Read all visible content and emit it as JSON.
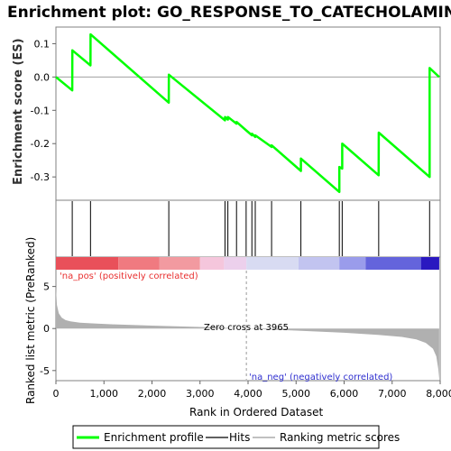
{
  "title": "Enrichment plot: GO_RESPONSE_TO_CATECHOLAMINE",
  "chart_data": [
    {
      "type": "line",
      "panel": "enrichment",
      "ylabel": "Enrichment score (ES)",
      "ylim": [
        -0.37,
        0.15
      ],
      "yticks": [
        "0.1",
        "0.0",
        "-0.1",
        "-0.2",
        "-0.3"
      ],
      "ytick_values": [
        0.1,
        0.0,
        -0.1,
        -0.2,
        -0.3
      ],
      "xlim": [
        0,
        8000
      ],
      "color": "#00ff00",
      "series": [
        {
          "name": "Enrichment profile",
          "x": [
            0,
            340,
            341,
            720,
            721,
            2350,
            2351,
            3520,
            3521,
            3580,
            3581,
            3760,
            3761,
            3960,
            4080,
            4081,
            4150,
            4151,
            4490,
            4491,
            5100,
            5101,
            5900,
            5901,
            5960,
            5961,
            6720,
            6721,
            7780,
            7781,
            7980
          ],
          "y": [
            0.0,
            -0.04,
            0.08,
            0.035,
            0.128,
            -0.077,
            0.007,
            -0.13,
            -0.12,
            -0.128,
            -0.12,
            -0.14,
            -0.135,
            -0.16,
            -0.175,
            -0.17,
            -0.18,
            -0.175,
            -0.21,
            -0.205,
            -0.282,
            -0.245,
            -0.345,
            -0.27,
            -0.275,
            -0.2,
            -0.295,
            -0.167,
            -0.3,
            0.027,
            0.0
          ]
        }
      ],
      "zero_line": 0.0
    },
    {
      "type": "hits",
      "panel": "hits",
      "hits": [
        340,
        720,
        2350,
        3520,
        3580,
        3760,
        3960,
        4080,
        4150,
        4490,
        5100,
        5900,
        5960,
        6720,
        7780
      ]
    },
    {
      "type": "heatmap",
      "panel": "ranking-colorbar",
      "segments": [
        {
          "from": 0,
          "to": 1300,
          "color": "#e9505a"
        },
        {
          "from": 1300,
          "to": 2150,
          "color": "#f07a80"
        },
        {
          "from": 2150,
          "to": 3000,
          "color": "#f29aa0"
        },
        {
          "from": 3000,
          "to": 3500,
          "color": "#f5c6dc"
        },
        {
          "from": 3500,
          "to": 3965,
          "color": "#ecd0ec"
        },
        {
          "from": 3965,
          "to": 5050,
          "color": "#d8dbf2"
        },
        {
          "from": 5050,
          "to": 5900,
          "color": "#c2c4f0"
        },
        {
          "from": 5900,
          "to": 6450,
          "color": "#9a9ceb"
        },
        {
          "from": 6450,
          "to": 7600,
          "color": "#6464dc"
        },
        {
          "from": 7600,
          "to": 7980,
          "color": "#2a18c0"
        }
      ],
      "pos_label": "'na_pos' (positively correlated)",
      "neg_label": "'na_neg' (negatively correlated)"
    },
    {
      "type": "area",
      "panel": "ranked-metric",
      "ylabel": "Ranked list metric (PreRanked)",
      "xlabel": "Rank in Ordered Dataset",
      "ylim": [
        -6.2,
        8.5
      ],
      "yticks": [
        "5",
        "0",
        "-5"
      ],
      "ytick_values": [
        5,
        0,
        -5
      ],
      "xlim": [
        0,
        8000
      ],
      "xticks": [
        "0",
        "1,000",
        "2,000",
        "3,000",
        "4,000",
        "5,000",
        "6,000",
        "7,000",
        "8,000"
      ],
      "xtick_values": [
        0,
        1000,
        2000,
        3000,
        4000,
        5000,
        6000,
        7000,
        8000
      ],
      "zero_cross": 3965,
      "zero_cross_label": "Zero cross at 3965",
      "fill": "#b0b0b0",
      "x": [
        0,
        20,
        60,
        120,
        200,
        300,
        500,
        800,
        1200,
        2000,
        3000,
        3965,
        5000,
        6000,
        6700,
        7200,
        7500,
        7700,
        7850,
        7920,
        7960,
        7980
      ],
      "y": [
        5.0,
        2.8,
        1.8,
        1.3,
        1.0,
        0.85,
        0.7,
        0.6,
        0.5,
        0.35,
        0.18,
        0.0,
        -0.25,
        -0.5,
        -0.75,
        -1.0,
        -1.3,
        -1.7,
        -2.4,
        -3.3,
        -4.8,
        -6.0
      ]
    }
  ],
  "legend": {
    "items": [
      {
        "label": "Enrichment profile",
        "color": "#00ff00"
      },
      {
        "label": "Hits",
        "color": "#606060"
      },
      {
        "label": "Ranking metric scores",
        "color": "#c0c0c0"
      }
    ]
  }
}
